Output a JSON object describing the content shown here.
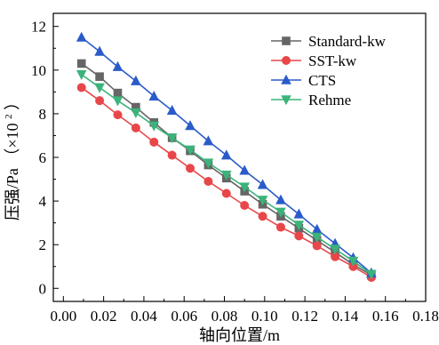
{
  "chart_data": {
    "type": "line",
    "xlabel": "轴向位置/m",
    "ylabel": "压强/Pa",
    "ylabel_unit_prefix": "（×10",
    "ylabel_unit_exp": "2",
    "ylabel_unit_suffix": "）",
    "xlim": [
      -0.005,
      0.18
    ],
    "ylim": [
      -0.6,
      12.6
    ],
    "x_ticks": [
      0.0,
      0.02,
      0.04,
      0.06,
      0.08,
      0.1,
      0.12,
      0.14,
      0.16,
      0.18
    ],
    "x_tick_labels": [
      "0.00",
      "0.02",
      "0.04",
      "0.06",
      "0.08",
      "0.10",
      "0.12",
      "0.14",
      "0.16",
      "0.18"
    ],
    "y_ticks": [
      0,
      2,
      4,
      6,
      8,
      10,
      12
    ],
    "y_tick_labels": [
      "0",
      "2",
      "4",
      "6",
      "8",
      "10",
      "12"
    ],
    "grid": false,
    "legend_position": "top-right",
    "x": [
      0.009,
      0.018,
      0.027,
      0.036,
      0.045,
      0.054,
      0.063,
      0.072,
      0.081,
      0.09,
      0.099,
      0.108,
      0.117,
      0.126,
      0.135,
      0.144,
      0.153
    ],
    "series": [
      {
        "name": "Standard-kw",
        "color": "#666666",
        "marker": "square",
        "values": [
          10.3,
          9.7,
          8.95,
          8.3,
          7.6,
          6.9,
          6.3,
          5.65,
          5.05,
          4.45,
          3.85,
          3.3,
          2.75,
          2.2,
          1.65,
          1.1,
          0.6
        ]
      },
      {
        "name": "SST-kw",
        "color": "#e8474a",
        "marker": "circle",
        "values": [
          9.2,
          8.6,
          7.95,
          7.35,
          6.7,
          6.1,
          5.5,
          4.9,
          4.35,
          3.8,
          3.3,
          2.8,
          2.4,
          1.95,
          1.45,
          1.0,
          0.5
        ]
      },
      {
        "name": "CTS",
        "color": "#2a5bc9",
        "marker": "triangle-up",
        "values": [
          11.5,
          10.85,
          10.15,
          9.5,
          8.8,
          8.15,
          7.45,
          6.75,
          6.1,
          5.4,
          4.75,
          4.05,
          3.4,
          2.7,
          2.05,
          1.4,
          0.7
        ]
      },
      {
        "name": "Rehme",
        "color": "#3cb37a",
        "marker": "triangle-down",
        "values": [
          9.8,
          9.2,
          8.6,
          8.05,
          7.45,
          6.9,
          6.35,
          5.75,
          5.2,
          4.65,
          4.05,
          3.5,
          2.9,
          2.35,
          1.8,
          1.25,
          0.65
        ]
      }
    ]
  }
}
